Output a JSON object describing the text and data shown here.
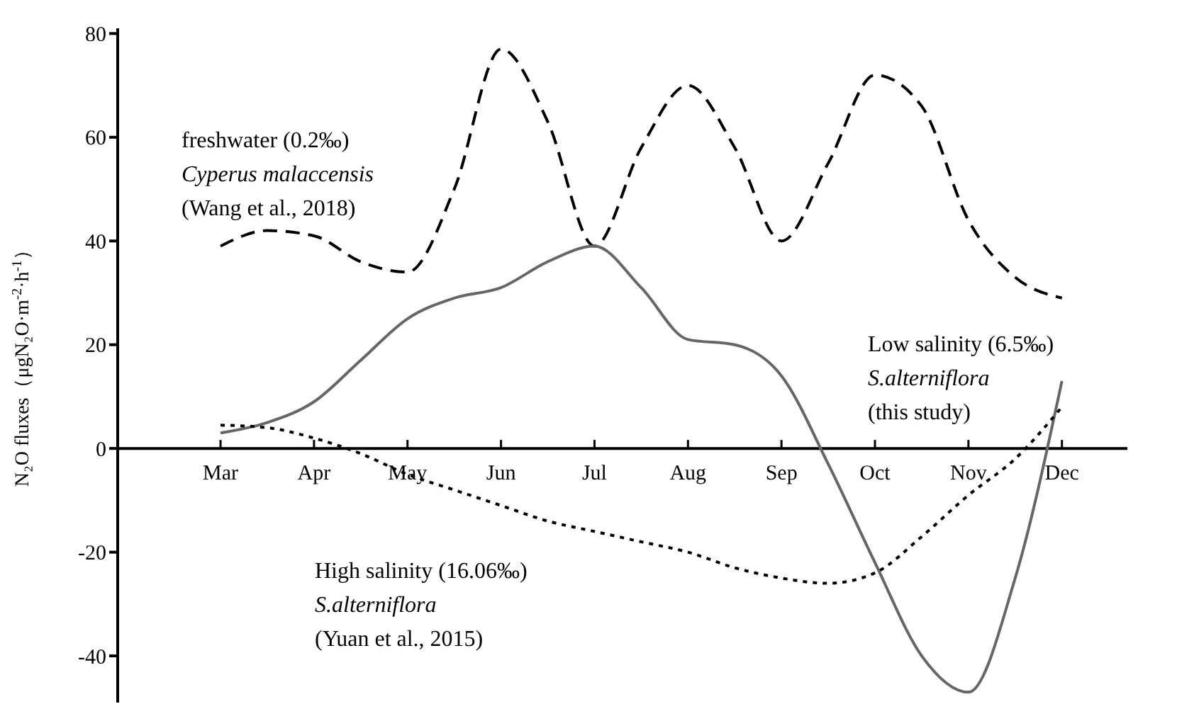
{
  "chart_data": {
    "type": "line",
    "ylabel": "N₂O fluxes（μgN₂O·m$^{-2}$·h$^{-1}$）",
    "categories": [
      "Mar",
      null,
      "Apr",
      null,
      "May",
      null,
      "Jun",
      null,
      "Jul",
      null,
      "Aug",
      null,
      "Sep",
      null,
      "Oct",
      null,
      "Nov",
      null,
      "Dec"
    ],
    "ylim": [
      -49,
      81
    ],
    "yticks": [
      -40,
      -20,
      0,
      20,
      40,
      60,
      80
    ],
    "grid": false,
    "marker": "none",
    "series": [
      {
        "name": "freshwater (0.2‰)\nCyperus malaccensis\n(Wang et al., 2018)",
        "color": "#000000",
        "line_style": "dashed",
        "values": [
          39,
          42,
          41,
          36,
          34,
          50,
          77,
          63,
          39,
          58,
          70,
          58,
          40,
          55,
          72,
          66,
          44,
          33,
          29
        ]
      },
      {
        "name": "Low salinity (6.5‰)\nS.alterniflora\n(this study)",
        "color": "#666666",
        "line_style": "solid",
        "values": [
          3,
          5,
          9,
          17,
          25,
          29,
          31,
          36,
          39,
          31,
          21,
          20,
          14,
          -3,
          -22,
          -40,
          -47,
          -25,
          13
        ]
      },
      {
        "name": "High salinity (16.06‰)\nS.alterniflora\n(Yuan et al., 2015)",
        "color": "#000000",
        "line_style": "dotted",
        "values": [
          4.5,
          4,
          2,
          -1,
          -5,
          -8,
          -11,
          -14,
          -16,
          -18,
          -20,
          -23,
          -25,
          -26,
          -24,
          -17,
          -9,
          -2,
          8
        ]
      }
    ]
  }
}
